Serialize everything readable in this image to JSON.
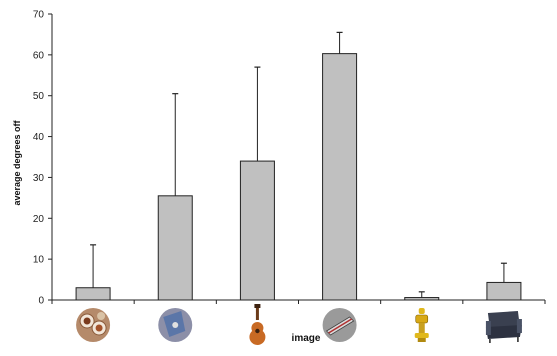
{
  "chart_data": {
    "type": "bar",
    "categories": [
      "plates of food",
      "disc",
      "guitar",
      "toy train",
      "yellow figurine",
      "armchair"
    ],
    "values": [
      3,
      25.5,
      34,
      60.3,
      0.6,
      4.3
    ],
    "error_upper": [
      13.5,
      50.5,
      57,
      65.5,
      2,
      9
    ],
    "title": "",
    "xlabel": "image",
    "ylabel": "average degrees off",
    "ylim": [
      0,
      70
    ],
    "yticks": [
      0,
      10,
      20,
      30,
      40,
      50,
      60,
      70
    ],
    "grid": false,
    "legend": "none",
    "colors": {
      "bar_fill": "#c0c0c0",
      "bar_stroke": "#222222",
      "axis": "#222222"
    },
    "category_icons": [
      "food-plates-thumbnail",
      "disc-thumbnail",
      "guitar-thumbnail",
      "train-thumbnail",
      "figurine-thumbnail",
      "armchair-thumbnail"
    ]
  }
}
